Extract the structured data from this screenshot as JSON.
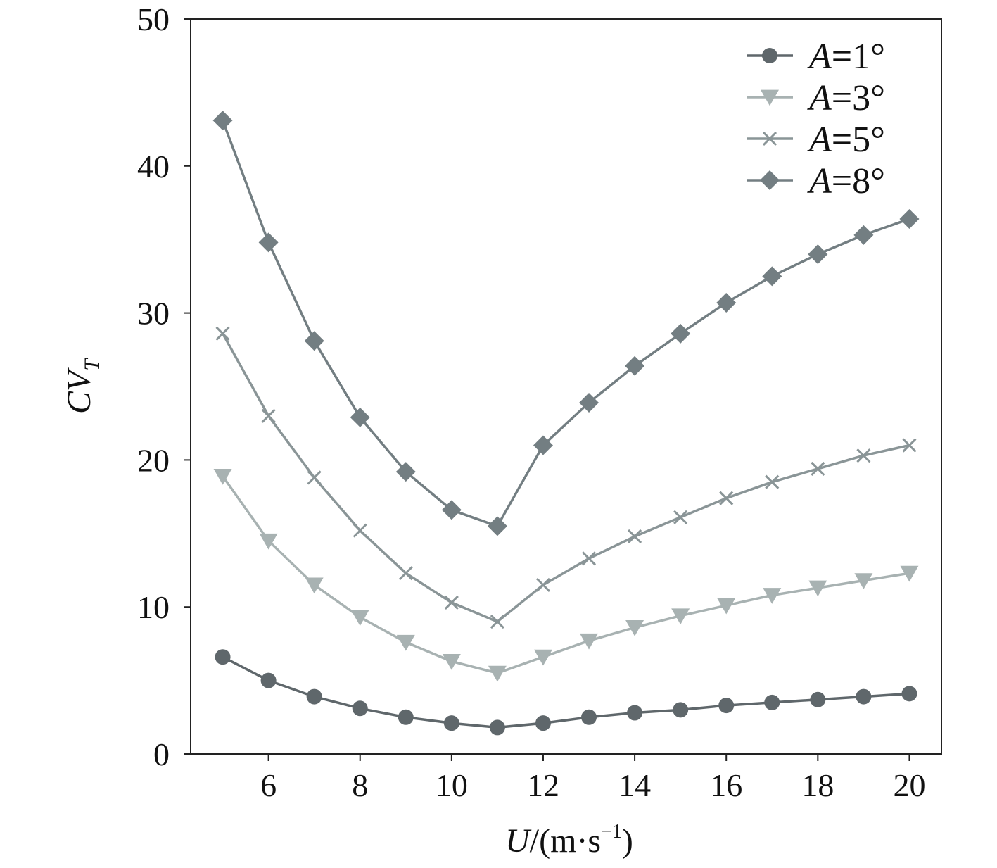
{
  "chart_data": {
    "type": "line",
    "title": "",
    "xlabel": {
      "var": "U",
      "unit": "/(m·s",
      "exp": "−1",
      "close": ")"
    },
    "ylabel": {
      "var": "CV",
      "sub": "T"
    },
    "xlim": [
      4.3,
      20.7
    ],
    "ylim": [
      0,
      50
    ],
    "xticks": [
      6,
      8,
      10,
      12,
      14,
      16,
      18,
      20
    ],
    "yticks": [
      0,
      10,
      20,
      30,
      40,
      50
    ],
    "grid": false,
    "legend": "top-right",
    "x": [
      5,
      6,
      7,
      8,
      9,
      10,
      11,
      12,
      13,
      14,
      15,
      16,
      17,
      18,
      19,
      20
    ],
    "series": [
      {
        "name": {
          "var": "A",
          "rest": "=1°"
        },
        "marker": "circle",
        "color": "#5f676b",
        "values": [
          6.6,
          5.0,
          3.9,
          3.1,
          2.5,
          2.1,
          1.8,
          2.1,
          2.5,
          2.8,
          3.0,
          3.3,
          3.5,
          3.7,
          3.9,
          4.1
        ]
      },
      {
        "name": {
          "var": "A",
          "rest": "=3°"
        },
        "marker": "triangle-down",
        "color": "#a8b2b2",
        "values": [
          18.9,
          14.5,
          11.5,
          9.3,
          7.6,
          6.3,
          5.5,
          6.6,
          7.7,
          8.6,
          9.4,
          10.1,
          10.8,
          11.3,
          11.8,
          12.3
        ]
      },
      {
        "name": {
          "var": "A",
          "rest": "=5°"
        },
        "marker": "x",
        "color": "#8a9597",
        "values": [
          28.6,
          23.0,
          18.8,
          15.2,
          12.3,
          10.3,
          9.0,
          11.5,
          13.3,
          14.8,
          16.1,
          17.4,
          18.5,
          19.4,
          20.3,
          21.0
        ]
      },
      {
        "name": {
          "var": "A",
          "rest": "=8°"
        },
        "marker": "diamond",
        "color": "#737e82",
        "values": [
          43.1,
          34.8,
          28.1,
          22.9,
          19.2,
          16.6,
          15.5,
          21.0,
          23.9,
          26.4,
          28.6,
          30.7,
          32.5,
          34.0,
          35.3,
          36.4
        ]
      }
    ]
  }
}
